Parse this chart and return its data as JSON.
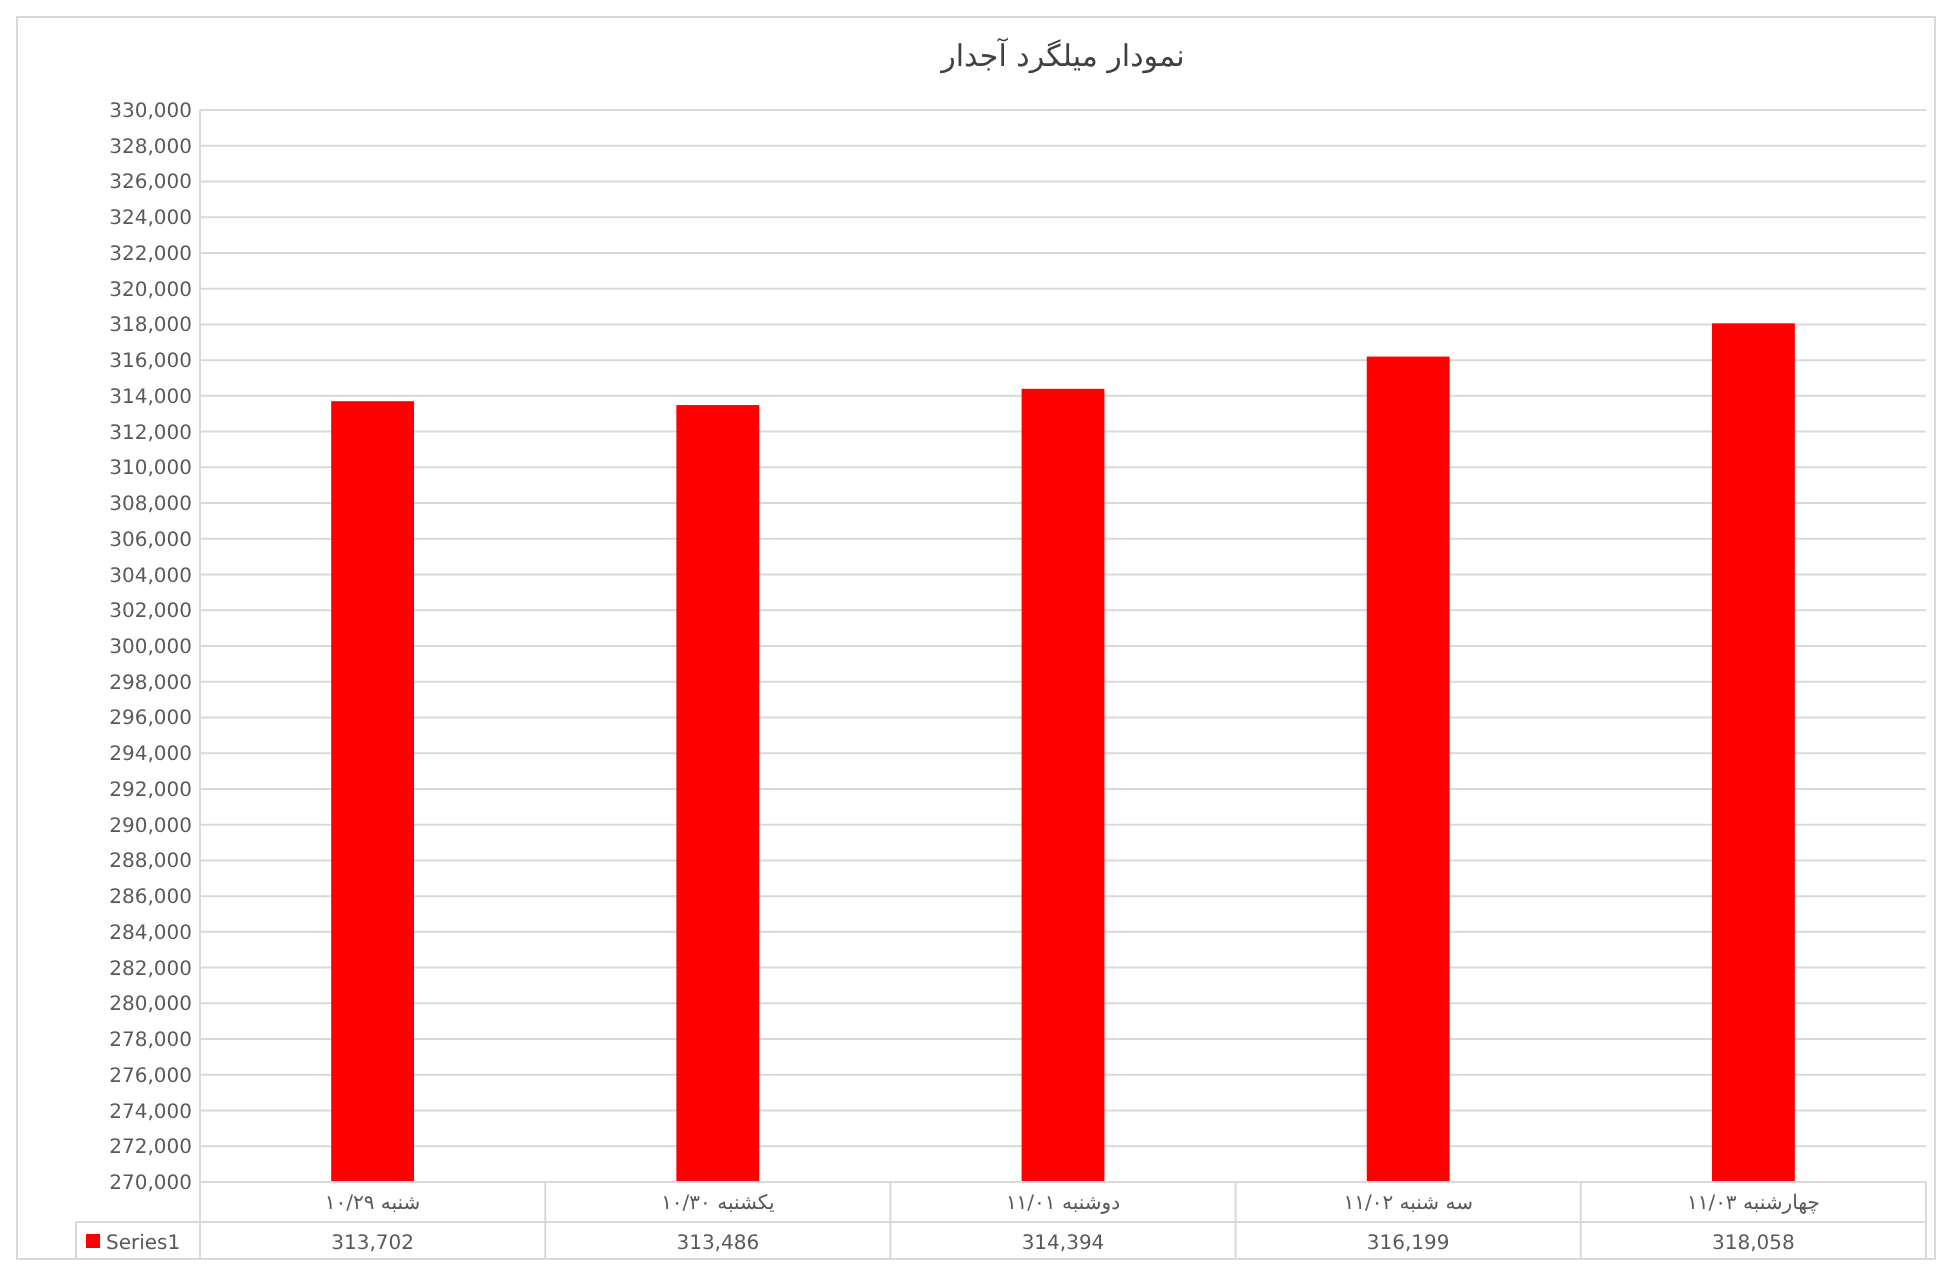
{
  "chart_data": {
    "type": "bar",
    "title": "نمودار میلگرد آجدار",
    "categories": [
      "شنبه ۱۰/۲۹",
      "یکشنبه ۱۰/۳۰",
      "دوشنبه ۱۱/۰۱",
      "سه شنبه ۱۱/۰۲",
      "چهارشنبه ۱۱/۰۳"
    ],
    "series": [
      {
        "name": "Series1",
        "color": "#ff0000",
        "values": [
          313702,
          313486,
          314394,
          316199,
          318058
        ],
        "value_labels": [
          "313,702",
          "313,486",
          "314,394",
          "316,199",
          "318,058"
        ]
      }
    ],
    "ylim": [
      270000,
      330000
    ],
    "yticks": [
      {
        "value": 270000,
        "label": "270,000"
      },
      {
        "value": 272000,
        "label": "272,000"
      },
      {
        "value": 274000,
        "label": "274,000"
      },
      {
        "value": 276000,
        "label": "276,000"
      },
      {
        "value": 278000,
        "label": "278,000"
      },
      {
        "value": 280000,
        "label": "280,000"
      },
      {
        "value": 282000,
        "label": "282,000"
      },
      {
        "value": 284000,
        "label": "284,000"
      },
      {
        "value": 286000,
        "label": "286,000"
      },
      {
        "value": 288000,
        "label": "288,000"
      },
      {
        "value": 290000,
        "label": "290,000"
      },
      {
        "value": 292000,
        "label": "292,000"
      },
      {
        "value": 294000,
        "label": "294,000"
      },
      {
        "value": 296000,
        "label": "296,000"
      },
      {
        "value": 298000,
        "label": "298,000"
      },
      {
        "value": 300000,
        "label": "300,000"
      },
      {
        "value": 302000,
        "label": "302,000"
      },
      {
        "value": 304000,
        "label": "304,000"
      },
      {
        "value": 306000,
        "label": "306,000"
      },
      {
        "value": 308000,
        "label": "308,000"
      },
      {
        "value": 310000,
        "label": "310,000"
      },
      {
        "value": 312000,
        "label": "312,000"
      },
      {
        "value": 314000,
        "label": "314,000"
      },
      {
        "value": 316000,
        "label": "316,000"
      },
      {
        "value": 318000,
        "label": "318,000"
      },
      {
        "value": 320000,
        "label": "320,000"
      },
      {
        "value": 322000,
        "label": "322,000"
      },
      {
        "value": 324000,
        "label": "324,000"
      },
      {
        "value": 326000,
        "label": "326,000"
      },
      {
        "value": 328000,
        "label": "328,000"
      },
      {
        "value": 330000,
        "label": "330,000"
      }
    ],
    "grid": "y"
  }
}
